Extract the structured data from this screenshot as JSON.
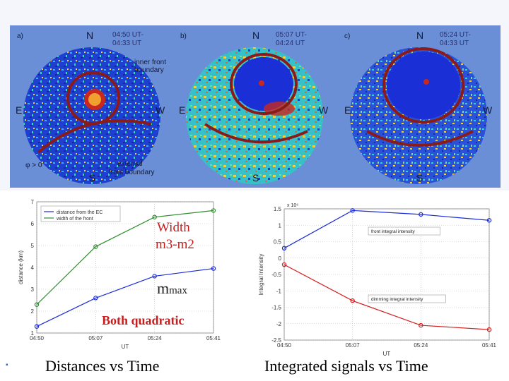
{
  "panels": [
    {
      "letter": "a)",
      "time_line1": "04:50 UT-",
      "time_line2": "04:33 UT",
      "n": "N",
      "e": "E",
      "w": "W",
      "s": "S",
      "inner_label_l1": "inner front",
      "inner_label_l2": "boundary",
      "ext_label_l1": "external",
      "ext_label_l2": "front boundary",
      "phi_label": "φ > 0"
    },
    {
      "letter": "b)",
      "time_line1": "05:07 UT-",
      "time_line2": "04:24 UT",
      "n": "N",
      "e": "E",
      "w": "W",
      "s": "S"
    },
    {
      "letter": "c)",
      "time_line1": "05:24 UT-",
      "time_line2": "04:33 UT",
      "n": "N",
      "e": "E",
      "w": "W",
      "s": "S"
    }
  ],
  "colors": {
    "disk_blue": "#1a2fd6",
    "hot_red": "#c8281e",
    "boundary": "#8b1a1a",
    "series_green": "#2f8f2f",
    "series_blue": "#1a2bd8",
    "series_red": "#d42020",
    "overlay_red": "#c81e1e"
  },
  "chart_data": [
    {
      "type": "line",
      "categories": [
        "04:50",
        "05:07",
        "05:24",
        "05:41"
      ],
      "xlabel": "UT",
      "ylabel": "distance (km)",
      "ylim": [
        1,
        7
      ],
      "yticks": [
        "1",
        "2",
        "3",
        "4",
        "5",
        "6",
        "7"
      ],
      "legend_position": "top-left",
      "series": [
        {
          "name": "distance from the EC",
          "color": "#1a2bd8",
          "values": [
            1.3,
            2.6,
            3.6,
            3.95
          ]
        },
        {
          "name": "width of the front",
          "color": "#2f8f2f",
          "values": [
            2.3,
            4.95,
            6.3,
            6.6
          ]
        }
      ],
      "annotations": {
        "width_l1": "Width",
        "width_l2": "m3-m2",
        "mmax_main": "m",
        "mmax_sub": "max",
        "both": "Both quadratic"
      }
    },
    {
      "type": "line",
      "categories": [
        "04:50",
        "05:07",
        "05:24",
        "05:41"
      ],
      "xlabel": "UT",
      "ylabel": "Integral Intensity",
      "ylim": [
        -2.5,
        1.5
      ],
      "yticks": [
        "1.5",
        "1",
        "0.5",
        "0",
        "-0.5",
        "-1",
        "-1.5",
        "-2",
        "-2.5"
      ],
      "scale_exponent": "x 10⁶",
      "series": [
        {
          "name": "front integral intensity",
          "color": "#1a2bd8",
          "values": [
            0.3,
            1.45,
            1.33,
            1.15
          ]
        },
        {
          "name": "dimming integral intensity",
          "color": "#d42020",
          "values": [
            -0.2,
            -1.3,
            -2.05,
            -2.18
          ]
        }
      ]
    }
  ],
  "captions": {
    "left": "Distances vs Time",
    "right": "Integrated signals vs Time"
  }
}
